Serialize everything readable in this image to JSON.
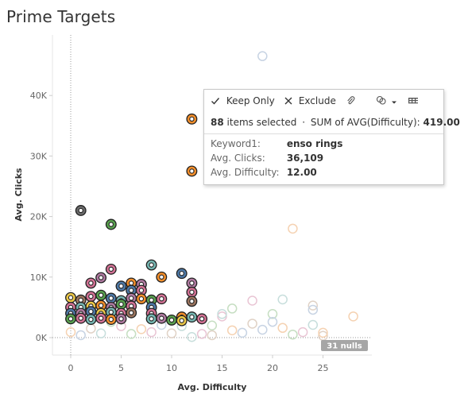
{
  "page": {
    "title": "Prime Targets"
  },
  "colors": {
    "axis_line": "#999999",
    "grid": "#eeeeee",
    "palette": [
      "#4e79a7",
      "#f28e2b",
      "#59a14f",
      "#b07aa1",
      "#d37295",
      "#76b7b2",
      "#edc948",
      "#9c755f",
      "#6b6b6b",
      "#8cd17d"
    ]
  },
  "tooltip": {
    "keep_only_label": "Keep Only",
    "exclude_label": "Exclude",
    "selected_count": "88",
    "selected_text": "items selected",
    "separator": "·",
    "sum_label": "SUM of AVG(Difficulty):",
    "sum_value": "419.00",
    "icons": [
      "check-icon",
      "close-icon",
      "paperclip-icon",
      "group-icon",
      "chevron-down-icon",
      "table-icon"
    ],
    "fields": [
      {
        "label": "Keyword1:",
        "value": "enso rings"
      },
      {
        "label": "Avg. Clicks:",
        "value": "36,109"
      },
      {
        "label": "Avg. Difficulty:",
        "value": "12.00"
      }
    ]
  },
  "nulls_badge": "31 nulls",
  "chart_data": {
    "type": "scatter",
    "title": "Prime Targets",
    "xlabel": "Avg. Difficulty",
    "ylabel": "Avg. Clicks",
    "xlim": [
      -2,
      30
    ],
    "ylim": [
      -2000,
      47000
    ],
    "x_ticks": [
      0,
      5,
      10,
      15,
      20,
      25
    ],
    "x_tick_labels": [
      "0",
      "5",
      "10",
      "15",
      "20",
      "25"
    ],
    "y_ticks": [
      0,
      10000,
      20000,
      30000,
      40000
    ],
    "y_tick_labels": [
      "0K",
      "10K",
      "20K",
      "30K",
      "40K"
    ],
    "grid": false,
    "selected_points": [
      {
        "x": 12,
        "y": 36109,
        "color": "#f28e2b"
      },
      {
        "x": 12,
        "y": 27500,
        "color": "#f28e2b"
      },
      {
        "x": 1,
        "y": 21000,
        "color": "#6b6b6b"
      },
      {
        "x": 4,
        "y": 18700,
        "color": "#59a14f"
      },
      {
        "x": 8,
        "y": 12000,
        "color": "#76b7b2"
      },
      {
        "x": 3,
        "y": 9900,
        "color": "#b07aa1"
      },
      {
        "x": 4,
        "y": 11300,
        "color": "#d37295"
      },
      {
        "x": 9,
        "y": 10000,
        "color": "#f28e2b"
      },
      {
        "x": 11,
        "y": 10600,
        "color": "#4e79a7"
      },
      {
        "x": 12,
        "y": 9000,
        "color": "#b07aa1"
      },
      {
        "x": 12,
        "y": 7500,
        "color": "#d37295"
      },
      {
        "x": 12,
        "y": 6000,
        "color": "#9c755f"
      },
      {
        "x": 2,
        "y": 9000,
        "color": "#d37295"
      },
      {
        "x": 5,
        "y": 8500,
        "color": "#4e79a7"
      },
      {
        "x": 6,
        "y": 9000,
        "color": "#f28e2b"
      },
      {
        "x": 7,
        "y": 8800,
        "color": "#b07aa1"
      },
      {
        "x": 6,
        "y": 7800,
        "color": "#4e79a7"
      },
      {
        "x": 7,
        "y": 7800,
        "color": "#d37295"
      },
      {
        "x": 0,
        "y": 6600,
        "color": "#edc948"
      },
      {
        "x": 1,
        "y": 6200,
        "color": "#9c755f"
      },
      {
        "x": 2,
        "y": 6800,
        "color": "#d37295"
      },
      {
        "x": 3,
        "y": 7000,
        "color": "#59a14f"
      },
      {
        "x": 4,
        "y": 6500,
        "color": "#4e79a7"
      },
      {
        "x": 5,
        "y": 6100,
        "color": "#76b7b2"
      },
      {
        "x": 6,
        "y": 6500,
        "color": "#b07aa1"
      },
      {
        "x": 7,
        "y": 6400,
        "color": "#f28e2b"
      },
      {
        "x": 8,
        "y": 6200,
        "color": "#59a14f"
      },
      {
        "x": 9,
        "y": 6400,
        "color": "#d37295"
      },
      {
        "x": 0,
        "y": 5000,
        "color": "#d37295"
      },
      {
        "x": 1,
        "y": 5000,
        "color": "#76b7b2"
      },
      {
        "x": 2,
        "y": 5200,
        "color": "#edc948"
      },
      {
        "x": 3,
        "y": 5300,
        "color": "#f28e2b"
      },
      {
        "x": 4,
        "y": 5000,
        "color": "#b07aa1"
      },
      {
        "x": 5,
        "y": 5500,
        "color": "#59a14f"
      },
      {
        "x": 6,
        "y": 5200,
        "color": "#d37295"
      },
      {
        "x": 8,
        "y": 5000,
        "color": "#4e79a7"
      },
      {
        "x": 0,
        "y": 4000,
        "color": "#4e79a7"
      },
      {
        "x": 1,
        "y": 4000,
        "color": "#b07aa1"
      },
      {
        "x": 2,
        "y": 4300,
        "color": "#4e79a7"
      },
      {
        "x": 3,
        "y": 4000,
        "color": "#edc948"
      },
      {
        "x": 4,
        "y": 4200,
        "color": "#76b7b2"
      },
      {
        "x": 5,
        "y": 4000,
        "color": "#d37295"
      },
      {
        "x": 6,
        "y": 4100,
        "color": "#9c755f"
      },
      {
        "x": 8,
        "y": 4000,
        "color": "#d37295"
      },
      {
        "x": 0,
        "y": 3100,
        "color": "#59a14f"
      },
      {
        "x": 1,
        "y": 3200,
        "color": "#d37295"
      },
      {
        "x": 2,
        "y": 3000,
        "color": "#76b7b2"
      },
      {
        "x": 3,
        "y": 3200,
        "color": "#d37295"
      },
      {
        "x": 4,
        "y": 3000,
        "color": "#f28e2b"
      },
      {
        "x": 5,
        "y": 3100,
        "color": "#b07aa1"
      },
      {
        "x": 8,
        "y": 3100,
        "color": "#76b7b2"
      },
      {
        "x": 9,
        "y": 3200,
        "color": "#b07aa1"
      },
      {
        "x": 10,
        "y": 2900,
        "color": "#59a14f"
      },
      {
        "x": 11,
        "y": 3400,
        "color": "#f28e2b"
      },
      {
        "x": 11,
        "y": 2800,
        "color": "#edc948"
      },
      {
        "x": 12,
        "y": 3400,
        "color": "#76b7b2"
      },
      {
        "x": 13,
        "y": 3100,
        "color": "#d37295"
      }
    ],
    "unselected_points": [
      {
        "x": 19,
        "y": 46500
      },
      {
        "x": 22,
        "y": 18000
      },
      {
        "x": 16,
        "y": 4800
      },
      {
        "x": 18,
        "y": 6100
      },
      {
        "x": 21,
        "y": 6300
      },
      {
        "x": 24,
        "y": 5300
      },
      {
        "x": 24,
        "y": 4600
      },
      {
        "x": 28,
        "y": 3500
      },
      {
        "x": 20,
        "y": 3900
      },
      {
        "x": 15,
        "y": 3500
      },
      {
        "x": 15,
        "y": 3900
      },
      {
        "x": 18,
        "y": 2300
      },
      {
        "x": 19,
        "y": 1300
      },
      {
        "x": 21,
        "y": 1600
      },
      {
        "x": 22,
        "y": 500
      },
      {
        "x": 23,
        "y": 900
      },
      {
        "x": 24,
        "y": 2100
      },
      {
        "x": 25,
        "y": 300
      },
      {
        "x": 17,
        "y": 800
      },
      {
        "x": 16,
        "y": 1200
      },
      {
        "x": 14,
        "y": 2000
      },
      {
        "x": 13,
        "y": 600
      },
      {
        "x": 12,
        "y": 100
      },
      {
        "x": 10,
        "y": 700
      },
      {
        "x": 9,
        "y": 2100
      },
      {
        "x": 7,
        "y": 1400
      },
      {
        "x": 6,
        "y": 600
      },
      {
        "x": 5,
        "y": 1900
      },
      {
        "x": 3,
        "y": 700
      },
      {
        "x": 2,
        "y": 1500
      },
      {
        "x": 1,
        "y": 400
      },
      {
        "x": 0,
        "y": 900
      },
      {
        "x": 4,
        "y": 2600
      },
      {
        "x": 8,
        "y": 900
      },
      {
        "x": 11,
        "y": 1900
      },
      {
        "x": 14,
        "y": 400
      },
      {
        "x": 20,
        "y": 2600
      },
      {
        "x": 25,
        "y": 800
      }
    ]
  }
}
